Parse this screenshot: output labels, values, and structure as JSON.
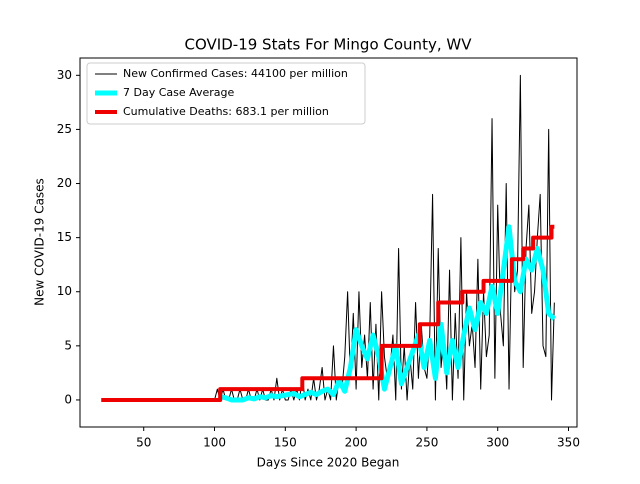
{
  "chart_data": {
    "type": "line",
    "title": "COVID-19 Stats For Mingo County, WV",
    "x_label": "Days Since 2020 Began",
    "y_label": "New COVID-19 Cases",
    "xlim": [
      5,
      356
    ],
    "ylim": [
      -2.5,
      31.6
    ],
    "xticks": [
      50,
      100,
      150,
      200,
      250,
      300,
      350
    ],
    "yticks": [
      0,
      5,
      10,
      15,
      20,
      25,
      30
    ],
    "legend": "upper left",
    "series": [
      {
        "name": "New Confirmed Cases: 44100 per million",
        "color": "#000000",
        "width": 1,
        "x": [
          100,
          102,
          104,
          106,
          108,
          110,
          112,
          114,
          116,
          118,
          120,
          122,
          124,
          126,
          128,
          130,
          132,
          134,
          136,
          138,
          140,
          142,
          144,
          146,
          148,
          150,
          152,
          154,
          156,
          158,
          160,
          162,
          164,
          166,
          168,
          170,
          172,
          174,
          176,
          178,
          180,
          182,
          184,
          186,
          188,
          190,
          192,
          194,
          196,
          198,
          200,
          202,
          204,
          206,
          208,
          210,
          212,
          214,
          216,
          218,
          220,
          222,
          224,
          226,
          228,
          230,
          232,
          234,
          236,
          238,
          240,
          242,
          244,
          246,
          248,
          250,
          252,
          254,
          256,
          258,
          260,
          262,
          264,
          266,
          268,
          270,
          272,
          274,
          276,
          278,
          280,
          282,
          284,
          286,
          288,
          290,
          292,
          294,
          296,
          298,
          300,
          302,
          304,
          306,
          308,
          310,
          312,
          314,
          316,
          318,
          320,
          322,
          324,
          326,
          328,
          330,
          332,
          334,
          336,
          338,
          340
        ],
        "values": [
          0,
          1,
          0,
          1,
          0,
          0,
          1,
          0,
          0,
          1,
          0,
          0,
          1,
          0,
          0,
          1,
          0,
          1,
          0,
          0,
          1,
          0,
          2,
          0,
          1,
          0,
          0,
          1,
          0,
          1,
          0,
          2,
          0,
          1,
          0,
          2,
          0,
          1,
          3,
          0,
          1,
          0,
          5,
          0,
          2,
          1,
          4,
          10,
          2,
          8,
          1,
          10,
          3,
          6,
          2,
          9,
          1,
          7,
          0,
          10,
          4,
          2,
          3,
          6,
          0,
          14,
          1,
          5,
          0,
          4,
          1,
          9,
          2,
          7,
          3,
          2,
          6,
          19,
          0,
          14,
          3,
          6,
          1,
          12,
          0,
          8,
          2,
          15,
          0,
          10,
          5,
          7,
          3,
          13,
          1,
          10,
          4,
          6,
          26,
          2,
          18,
          8,
          5,
          20,
          1,
          15,
          10,
          12,
          30,
          3,
          14,
          18,
          8,
          10,
          15,
          19,
          5,
          4,
          25,
          0,
          9
        ]
      },
      {
        "name": "7 Day Case Average",
        "color": "#00ffff",
        "width": 5,
        "x": [
          104,
          108,
          112,
          116,
          120,
          124,
          128,
          132,
          136,
          140,
          144,
          148,
          152,
          156,
          160,
          164,
          168,
          172,
          176,
          180,
          184,
          188,
          192,
          196,
          200,
          204,
          208,
          212,
          216,
          220,
          224,
          228,
          232,
          236,
          240,
          244,
          248,
          252,
          256,
          260,
          264,
          268,
          272,
          276,
          280,
          284,
          288,
          292,
          296,
          300,
          304,
          308,
          312,
          316,
          320,
          324,
          328,
          332,
          336,
          340
        ],
        "values": [
          0.3,
          0.2,
          0,
          0,
          0,
          0.2,
          0.1,
          0.3,
          0.2,
          0.4,
          0.3,
          0.4,
          0.5,
          0.6,
          0.3,
          0.5,
          0.7,
          0.5,
          0.8,
          1,
          0.5,
          1.8,
          0.8,
          3,
          6.5,
          5,
          3.8,
          6,
          4,
          1,
          3,
          5,
          1.5,
          3,
          4.5,
          6,
          3,
          5.5,
          2,
          7,
          2.5,
          5.5,
          3,
          6,
          8.5,
          6.5,
          9,
          8,
          10.5,
          8,
          12,
          16,
          11,
          10,
          13,
          12,
          14,
          12,
          8,
          7.5
        ]
      },
      {
        "name": "Cumulative Deaths: 683.1 per million",
        "color": "#ee0000",
        "width": 4,
        "x": [
          20,
          104,
          104,
          162,
          162,
          218,
          218,
          245,
          245,
          258,
          258,
          275,
          275,
          290,
          290,
          310,
          310,
          318,
          318,
          325,
          325,
          338,
          338,
          340
        ],
        "values": [
          0,
          0,
          1,
          1,
          2,
          2,
          5,
          5,
          7,
          7,
          9,
          9,
          10,
          10,
          11,
          11,
          13,
          13,
          14,
          14,
          15,
          15,
          16,
          16
        ]
      }
    ]
  }
}
